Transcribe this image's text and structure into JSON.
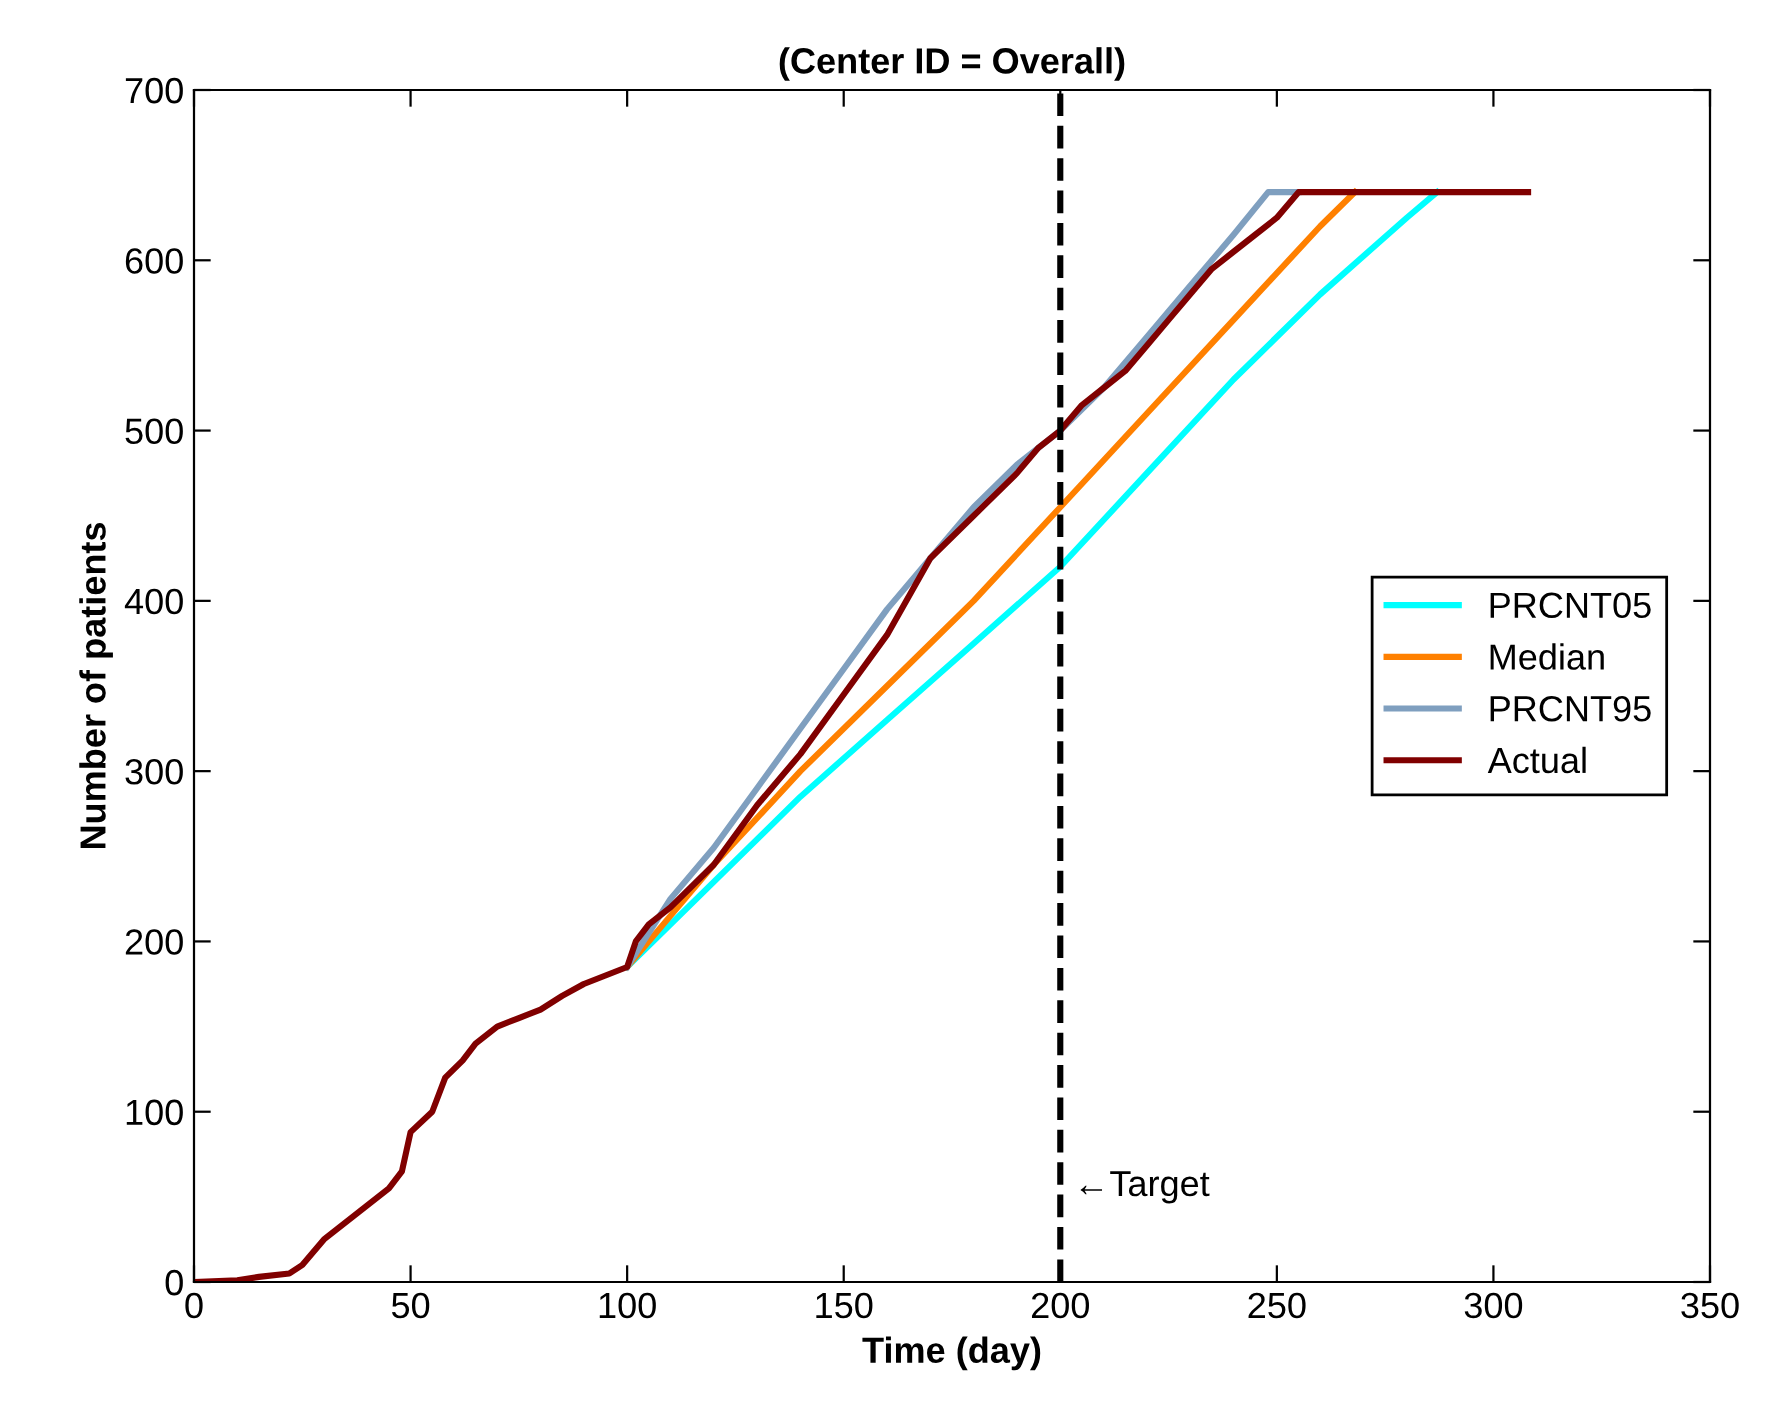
{
  "chart_data": {
    "type": "line",
    "title": "(Center ID = Overall)",
    "xlabel": "Time (day)",
    "ylabel": "Number of patients",
    "xlim": [
      0,
      350
    ],
    "xticks": [
      0,
      50,
      100,
      150,
      200,
      250,
      300,
      350
    ],
    "ylim": [
      0,
      700
    ],
    "yticks": [
      0,
      100,
      200,
      300,
      400,
      500,
      600,
      700
    ],
    "grid": false,
    "legend": "right",
    "line_style": "solid",
    "marker": "none",
    "ref_lines": [
      {
        "axis": "x",
        "value": 200,
        "label": "←Target",
        "color": "#000000",
        "line_style": "dashed"
      }
    ],
    "series": [
      {
        "name": "PRCNT05",
        "color": "#00ffff",
        "x": [
          100,
          120,
          140,
          160,
          180,
          200,
          220,
          240,
          260,
          280,
          287
        ],
        "values": [
          185,
          235,
          285,
          330,
          375,
          420,
          475,
          530,
          580,
          625,
          640
        ]
      },
      {
        "name": "Median",
        "color": "#ff8000",
        "x": [
          100,
          110,
          120,
          140,
          160,
          180,
          200,
          220,
          240,
          260,
          268
        ],
        "values": [
          185,
          215,
          245,
          300,
          350,
          400,
          455,
          510,
          565,
          620,
          640
        ]
      },
      {
        "name": "PRCNT95",
        "color": "#7f9fbf",
        "x": [
          100,
          110,
          120,
          130,
          140,
          150,
          160,
          170,
          180,
          190,
          200,
          210,
          220,
          230,
          240,
          248,
          255
        ],
        "values": [
          185,
          225,
          255,
          290,
          325,
          360,
          395,
          425,
          455,
          480,
          500,
          525,
          555,
          585,
          615,
          640,
          640
        ]
      },
      {
        "name": "Actual",
        "color": "#800000",
        "x": [
          0,
          10,
          15,
          22,
          25,
          30,
          35,
          40,
          45,
          48,
          50,
          55,
          58,
          62,
          65,
          70,
          75,
          80,
          85,
          90,
          95,
          100,
          102,
          105,
          110,
          120,
          130,
          140,
          150,
          160,
          170,
          180,
          190,
          195,
          200,
          205,
          210,
          215,
          220,
          225,
          230,
          235,
          240,
          245,
          250,
          255,
          308
        ],
        "values": [
          0,
          1,
          3,
          5,
          10,
          25,
          35,
          45,
          55,
          65,
          88,
          100,
          120,
          130,
          140,
          150,
          155,
          160,
          168,
          175,
          180,
          185,
          200,
          210,
          220,
          245,
          280,
          310,
          345,
          380,
          425,
          450,
          475,
          490,
          500,
          515,
          525,
          535,
          550,
          565,
          580,
          595,
          605,
          615,
          625,
          640,
          640
        ]
      }
    ]
  }
}
